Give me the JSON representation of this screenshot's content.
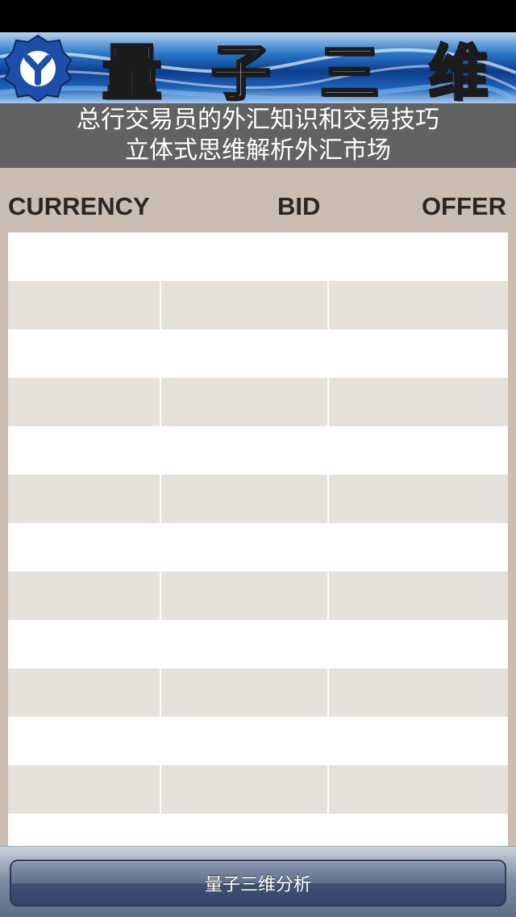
{
  "banner": {
    "title_chars": [
      "量",
      "子",
      "三",
      "维"
    ],
    "logo_icon": "gear-y-logo-icon",
    "colors": {
      "blue_dark": "#0d3d8c",
      "blue_light": "#b6d2ee"
    }
  },
  "tagline": {
    "line1": "总行交易员的外汇知识和交易技巧",
    "line2": "立体式思维解析外汇市场"
  },
  "table": {
    "headers": {
      "currency": "CURRENCY",
      "bid": "BID",
      "offer": "OFFER"
    },
    "rows": [
      {
        "currency": "",
        "bid": "",
        "offer": ""
      },
      {
        "currency": "",
        "bid": "",
        "offer": ""
      },
      {
        "currency": "",
        "bid": "",
        "offer": ""
      },
      {
        "currency": "",
        "bid": "",
        "offer": ""
      },
      {
        "currency": "",
        "bid": "",
        "offer": ""
      },
      {
        "currency": "",
        "bid": "",
        "offer": ""
      },
      {
        "currency": "",
        "bid": "",
        "offer": ""
      },
      {
        "currency": "",
        "bid": "",
        "offer": ""
      },
      {
        "currency": "",
        "bid": "",
        "offer": ""
      },
      {
        "currency": "",
        "bid": "",
        "offer": ""
      },
      {
        "currency": "",
        "bid": "",
        "offer": ""
      },
      {
        "currency": "",
        "bid": "",
        "offer": ""
      },
      {
        "currency": "",
        "bid": "",
        "offer": ""
      }
    ]
  },
  "bottom": {
    "analysis_button_label": "量子三维分析"
  },
  "colors": {
    "background": "#cbbdb2",
    "row_alt": "#e7e1dc",
    "tagline_bg": "#626262",
    "header_text": "#2a2623"
  }
}
